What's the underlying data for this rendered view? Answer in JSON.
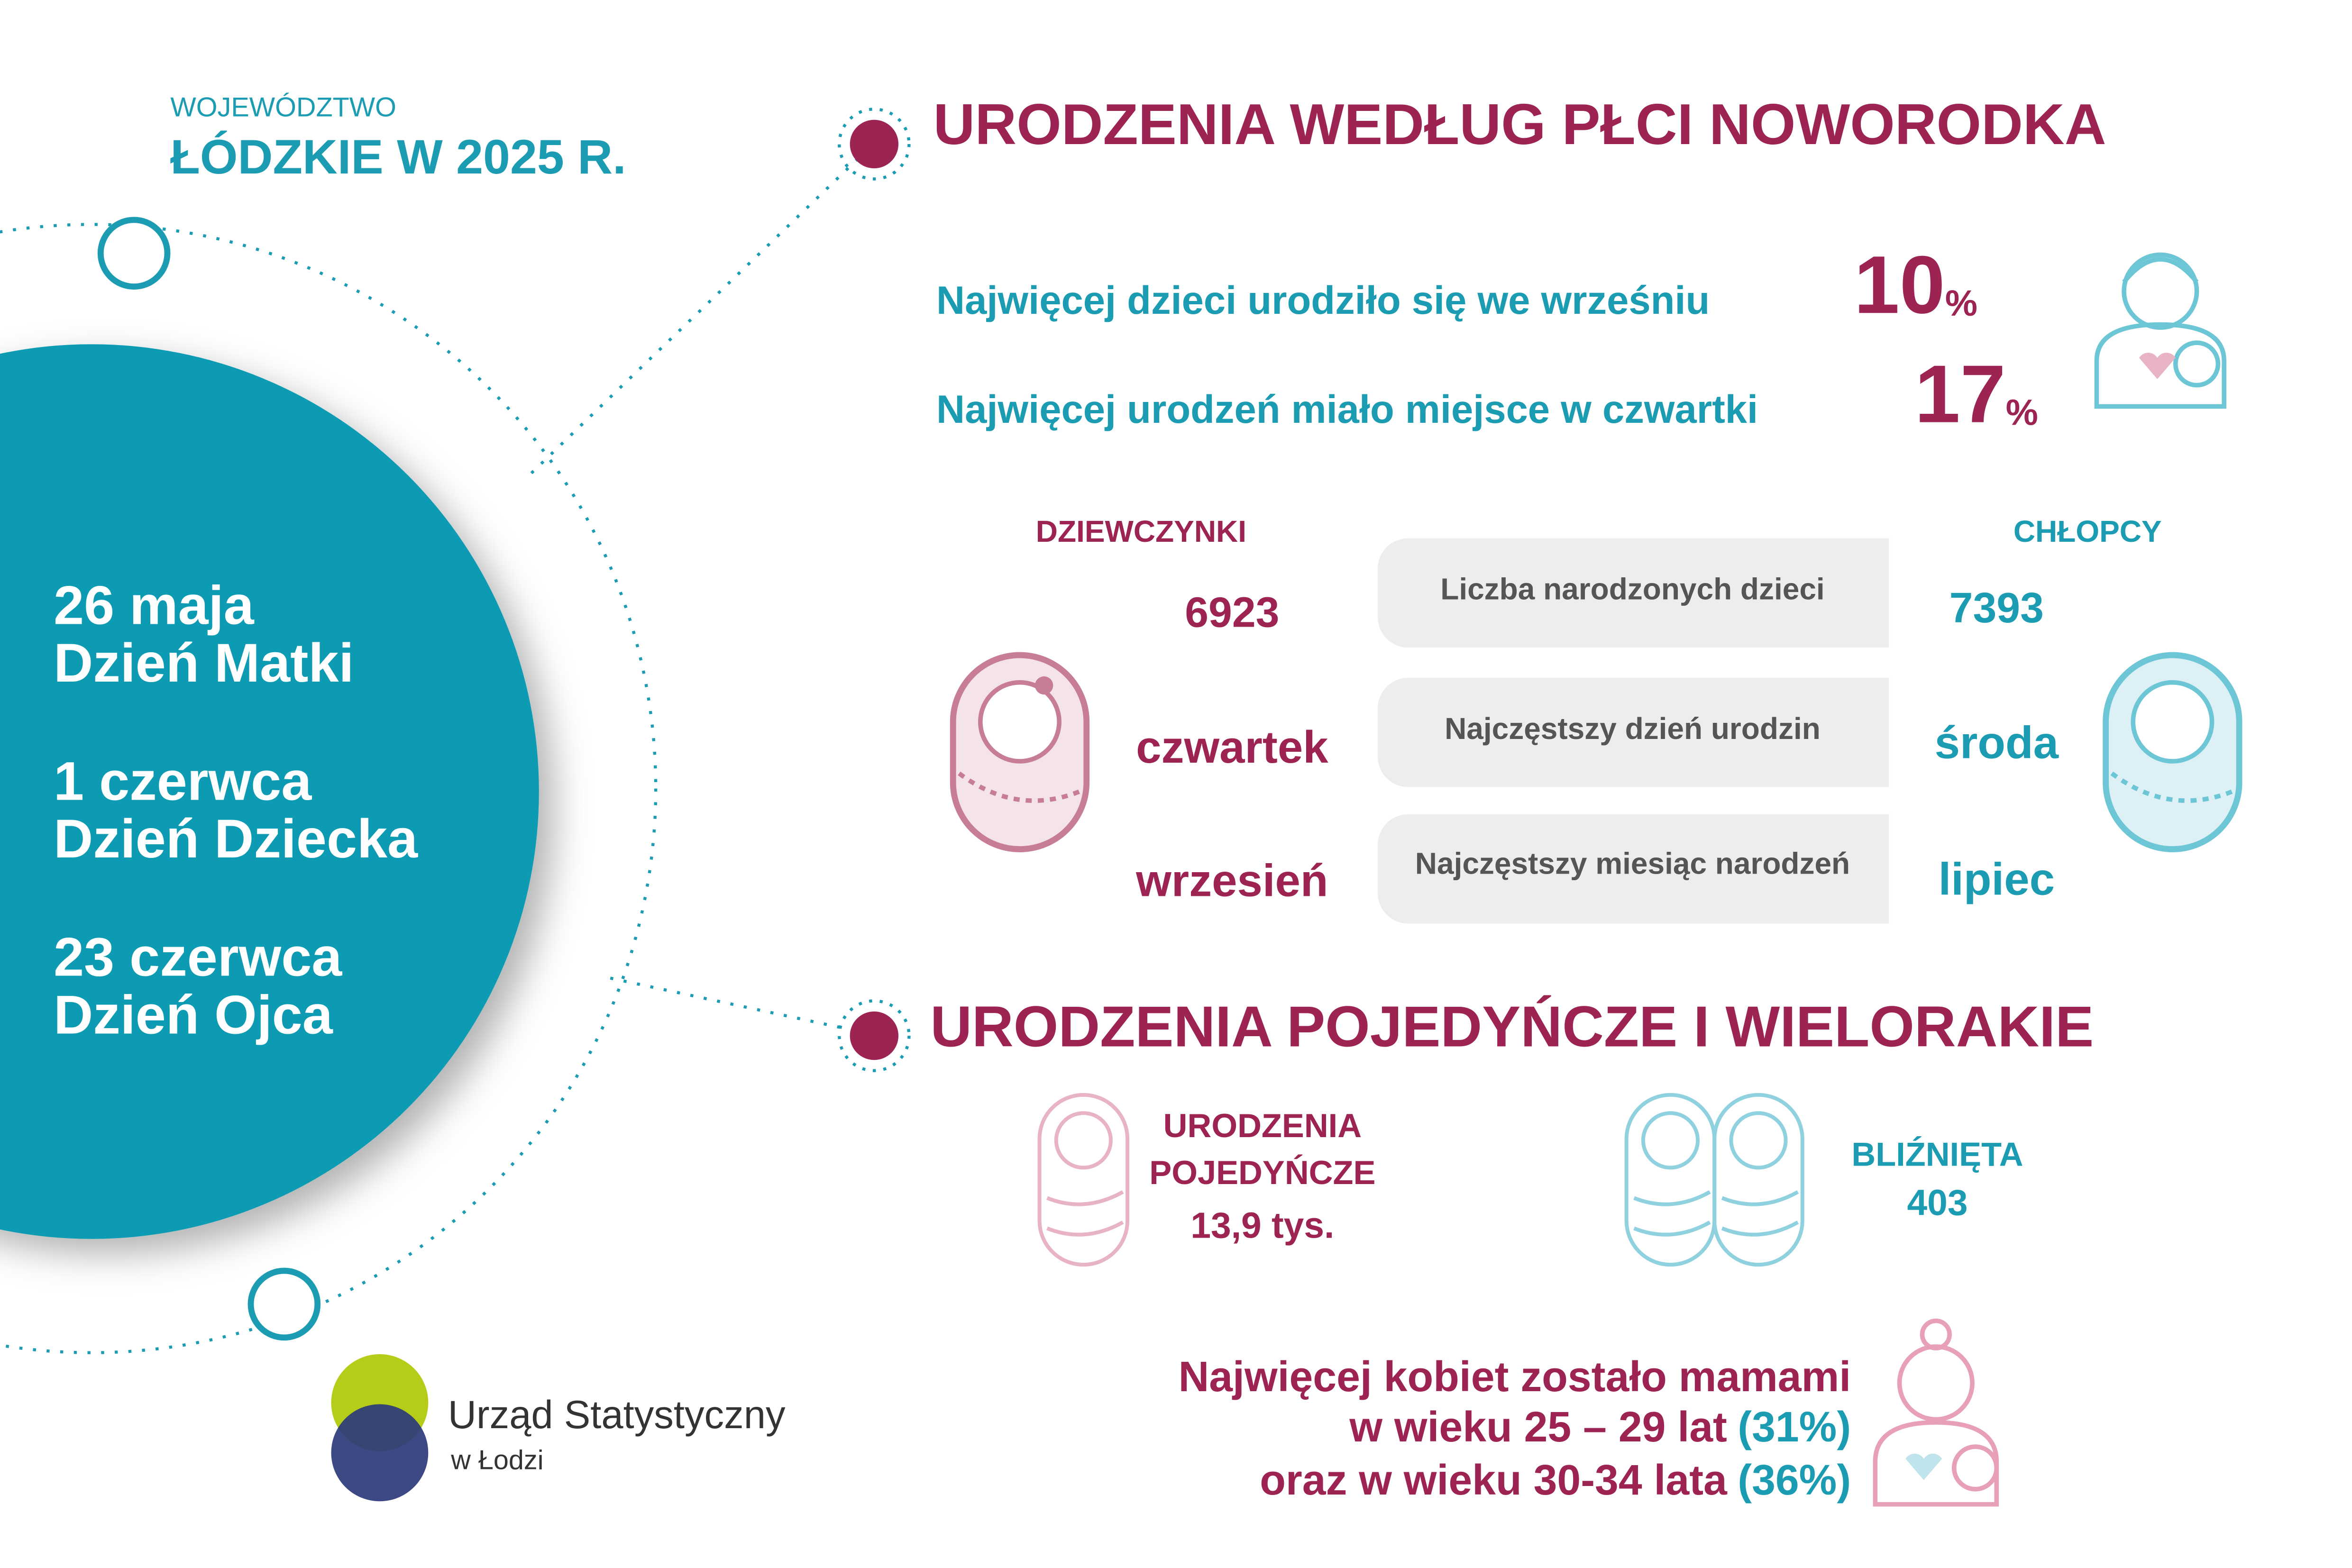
{
  "header": {
    "region_label": "WOJEWÓDZTWO",
    "title": "ŁÓDZKIE W 2025 R."
  },
  "holidays": [
    {
      "date": "26 maja",
      "name": "Dzień Matki"
    },
    {
      "date": "1 czerwca",
      "name": "Dzień Dziecka"
    },
    {
      "date": "23 czerwca",
      "name": "Dzień Ojca"
    }
  ],
  "sex_section": {
    "title": "URODZENIA WEDŁUG PŁCI NOWORODKA",
    "facts": [
      {
        "text": "Najwięcej dzieci urodziło się we wrześniu",
        "value": 10,
        "unit": "%"
      },
      {
        "text": "Najwięcej urodzeń miało miejsce w czwartki",
        "value": 17,
        "unit": "%"
      }
    ],
    "girls_label": "DZIEWCZYNKI",
    "boys_label": "CHŁOPCY",
    "rows": [
      {
        "label": "Liczba narodzonych dzieci",
        "girls": 6923,
        "boys": 7393
      },
      {
        "label": "Najczęstszy dzień urodzin",
        "girls": "czwartek",
        "boys": "środa"
      },
      {
        "label": "Najczęstszy miesiąc narodzeń",
        "girls": "wrzesień",
        "boys": "lipiec"
      }
    ]
  },
  "multiple_section": {
    "title": "URODZENIA POJEDYŃCZE I WIELORAKIE",
    "single": {
      "label_line1": "URODZENIA",
      "label_line2": "POJEDYŃCZE",
      "value": "13,9 tys."
    },
    "twins": {
      "label": "BLIŹNIĘTA",
      "value": 403
    }
  },
  "mothers": {
    "line1": "Najwięcej kobiet zostało mamami",
    "line2": "w wieku 25 – 29 lat",
    "line2_share": "(31%)",
    "line3": "oraz w wieku 30-34 lata",
    "line3_share": "(36%)"
  },
  "logo": {
    "name": "Urząd Statystyczny",
    "city": "w Łodzi"
  }
}
